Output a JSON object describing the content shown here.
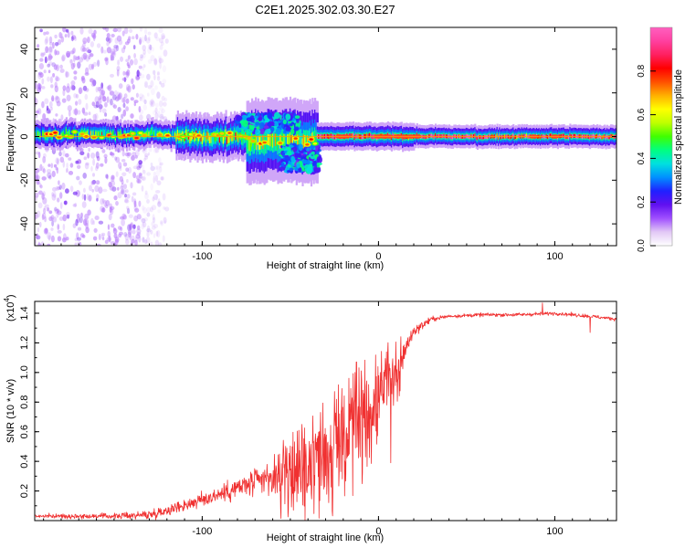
{
  "figure": {
    "title": "C2E1.2025.302.03.30.E27"
  },
  "chart_data": [
    {
      "type": "heatmap",
      "panel": "spectrogram",
      "title": "C2E1.2025.302.03.30.E27",
      "xlabel": "Height of straight line (km)",
      "ylabel": "Frequency (Hz)",
      "xlim": [
        -195,
        135
      ],
      "ylim": [
        -50,
        50
      ],
      "x_ticks": [
        -100,
        0,
        100
      ],
      "x_tick_labels": [
        "-100",
        "0",
        "100"
      ],
      "y_ticks": [
        -40,
        -20,
        0,
        20,
        40
      ],
      "y_tick_labels": [
        "-40",
        "-20",
        "0",
        "20",
        "40"
      ],
      "colorbar": {
        "label": "Normalized spectral amplitude",
        "range": [
          0,
          1
        ],
        "ticks": [
          0.0,
          0.2,
          0.4,
          0.6,
          0.8
        ],
        "tick_labels": [
          "0.0",
          "0.2",
          "0.4",
          "0.6",
          "0.8"
        ],
        "colors": [
          "#ffffff",
          "#e2c8f5",
          "#a050ff",
          "#6010f0",
          "#2020ff",
          "#0090ff",
          "#00e0e0",
          "#00ff80",
          "#40ff00",
          "#c0ff00",
          "#ffff00",
          "#ffb000",
          "#ff5000",
          "#ff0000",
          "#ff2060",
          "#ff40a0",
          "#ff60c0"
        ]
      },
      "carrier_line": {
        "frequency_hz": 0,
        "x_range": [
          -195,
          135
        ]
      },
      "bands": [
        {
          "x_start": -195,
          "x_end": -115,
          "f_center": 1,
          "half_width_hz": 3,
          "peak": 0.45
        },
        {
          "x_start": -115,
          "x_end": -75,
          "f_center": 0,
          "half_width_hz": 5,
          "peak": 0.6
        },
        {
          "x_start": -75,
          "x_end": -35,
          "f_center": -2,
          "half_width_hz": 9,
          "peak": 0.55
        },
        {
          "x_start": -35,
          "x_end": 20,
          "f_center": 0,
          "half_width_hz": 3,
          "peak": 0.85
        },
        {
          "x_start": 20,
          "x_end": 135,
          "f_center": 0,
          "half_width_hz": 2.5,
          "peak": 0.9
        }
      ],
      "features": [
        {
          "label": "upper lobe",
          "x_range": [
            -80,
            -45
          ],
          "f_range": [
            2,
            10
          ]
        },
        {
          "label": "lower lobe",
          "x_range": [
            -55,
            -33
          ],
          "f_range": [
            -16,
            -4
          ]
        },
        {
          "label": "scatter region",
          "x_range": [
            -195,
            -120
          ],
          "f_range": [
            -50,
            50
          ]
        }
      ]
    },
    {
      "type": "line",
      "panel": "snr",
      "xlabel": "Height of straight line (km)",
      "ylabel": "SNR (10 * v/v)",
      "multiplier": "(x10^4)",
      "multiplier_base": "(x10",
      "multiplier_exp": "4",
      "multiplier_close": ")",
      "color": "#f03030",
      "xlim": [
        -195,
        135
      ],
      "ylim": [
        0,
        1.48
      ],
      "x_ticks": [
        -100,
        0,
        100
      ],
      "x_tick_labels": [
        "-100",
        "0",
        "100"
      ],
      "y_ticks": [
        0.2,
        0.4,
        0.6,
        0.8,
        1.0,
        1.2,
        1.4
      ],
      "y_tick_labels": [
        "0.2",
        "0.4",
        "0.6",
        "0.8",
        "1.0",
        "1.2",
        "1.4"
      ],
      "trend": {
        "x": [
          -195,
          -150,
          -130,
          -120,
          -100,
          -80,
          -60,
          -50,
          -40,
          -30,
          -20,
          -10,
          0,
          5,
          10,
          15,
          20,
          30,
          40,
          60,
          80,
          100,
          120,
          135
        ],
        "y": [
          0.03,
          0.03,
          0.04,
          0.07,
          0.14,
          0.22,
          0.29,
          0.32,
          0.38,
          0.48,
          0.58,
          0.7,
          0.85,
          0.93,
          1.02,
          1.15,
          1.28,
          1.36,
          1.38,
          1.39,
          1.39,
          1.4,
          1.38,
          1.36
        ]
      },
      "spread": {
        "x": [
          -195,
          -150,
          -130,
          -110,
          -90,
          -70,
          -50,
          -40,
          -30,
          -20,
          -10,
          0,
          10,
          20,
          30,
          40,
          135
        ],
        "y": [
          0.02,
          0.03,
          0.05,
          0.07,
          0.1,
          0.16,
          0.22,
          0.28,
          0.34,
          0.36,
          0.34,
          0.28,
          0.18,
          0.06,
          0.03,
          0.02,
          0.02
        ]
      },
      "notable_points": [
        {
          "x": 7,
          "y": 0.39,
          "label": "dip"
        },
        {
          "x": 120,
          "y": 1.27,
          "label": "dip"
        },
        {
          "x": 93,
          "y": 1.47,
          "label": "max"
        }
      ]
    }
  ]
}
